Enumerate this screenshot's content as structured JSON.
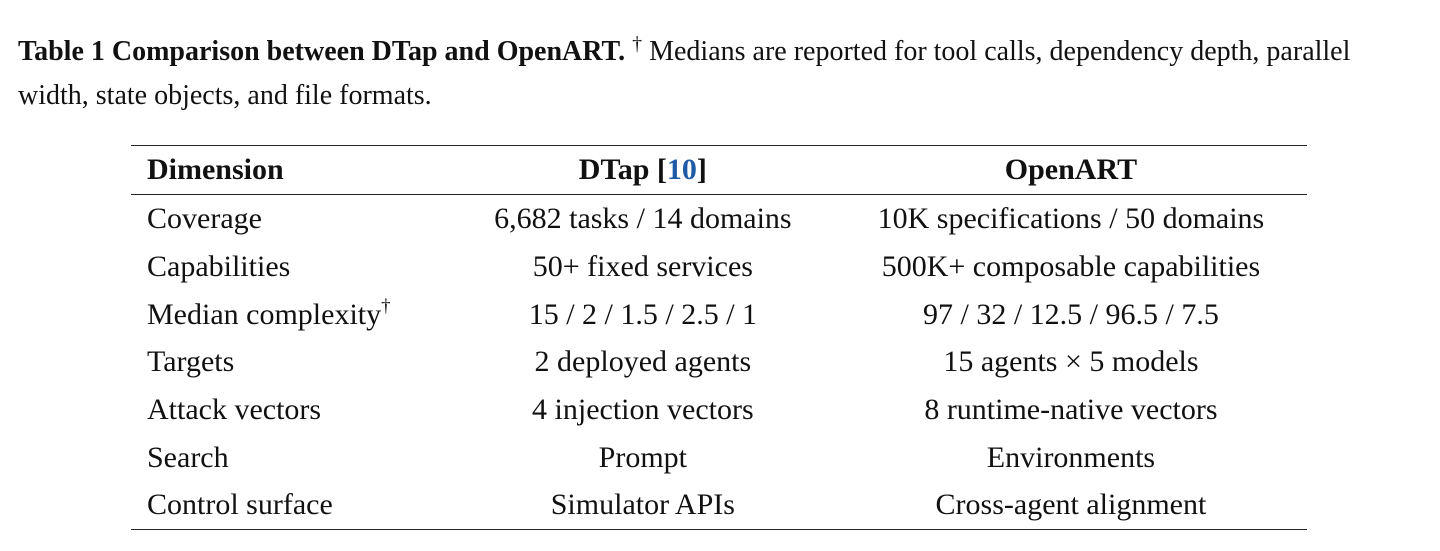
{
  "caption": {
    "label": "Table 1 Comparison between DTap and OpenART.",
    "dagger": "†",
    "text": " Medians are reported for tool calls, dependency depth, parallel width, state objects, and file formats."
  },
  "table": {
    "headers": {
      "dimension": "Dimension",
      "dtap": "DTap",
      "dtap_ref_open": " [",
      "dtap_ref": "10",
      "dtap_ref_close": "]",
      "openart": "OpenART"
    },
    "rows": [
      {
        "dimension": "Coverage",
        "mark": "",
        "dtap": "6,682 tasks / 14 domains",
        "openart": "10K specifications / 50 domains"
      },
      {
        "dimension": "Capabilities",
        "mark": "",
        "dtap": "50+ fixed services",
        "openart": "500K+ composable capabilities"
      },
      {
        "dimension": "Median complexity",
        "mark": "†",
        "dtap": "15 / 2 / 1.5 / 2.5 / 1",
        "openart": "97 / 32 / 12.5 / 96.5 / 7.5"
      },
      {
        "dimension": "Targets",
        "mark": "",
        "dtap": "2 deployed agents",
        "openart": "15 agents × 5 models"
      },
      {
        "dimension": "Attack vectors",
        "mark": "",
        "dtap": "4 injection vectors",
        "openart": "8 runtime-native vectors"
      },
      {
        "dimension": "Search",
        "mark": "",
        "dtap": "Prompt",
        "openart": "Environments"
      },
      {
        "dimension": "Control surface",
        "mark": "",
        "dtap": "Simulator APIs",
        "openart": "Cross-agent alignment"
      }
    ]
  }
}
